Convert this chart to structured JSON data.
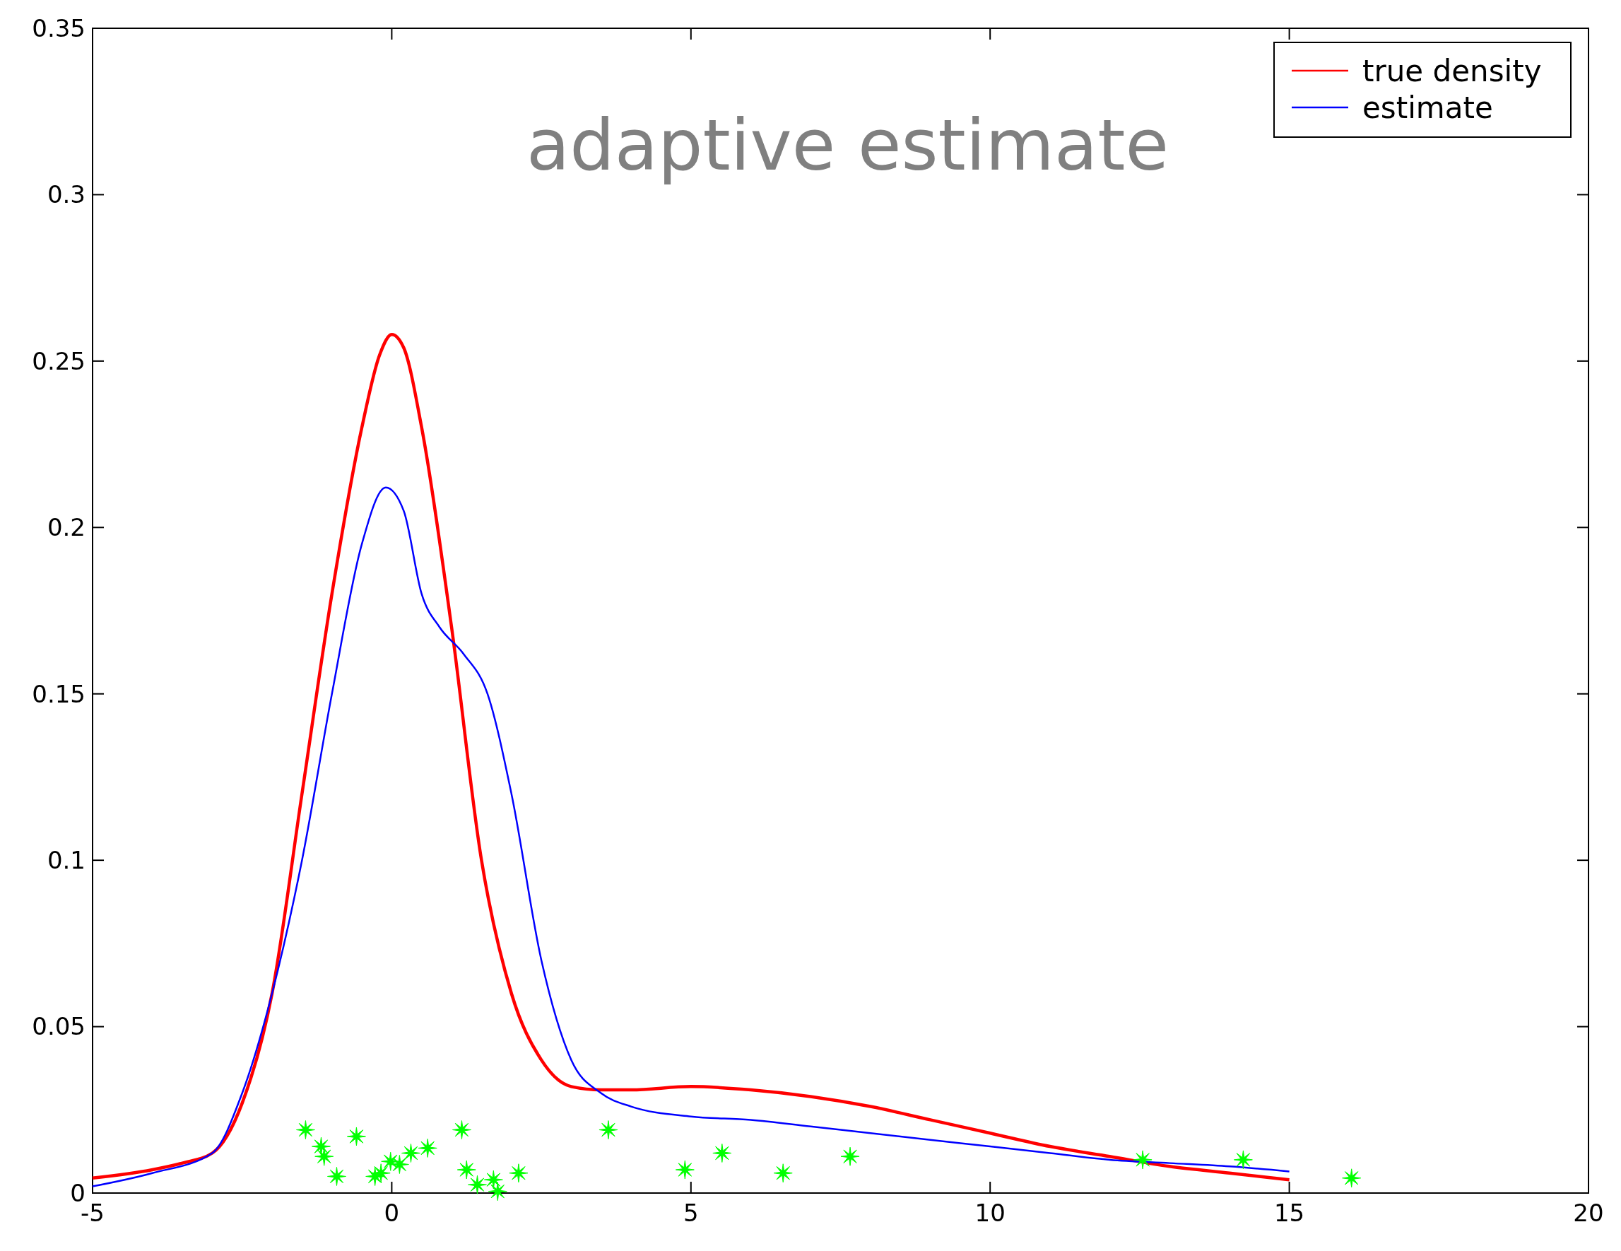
{
  "chart_data": {
    "type": "line",
    "title": "adaptive estimate",
    "xlim": [
      -5,
      20
    ],
    "ylim": [
      0,
      0.35
    ],
    "xticks": [
      -5,
      0,
      5,
      10,
      15,
      20
    ],
    "yticks": [
      0,
      0.05,
      0.1,
      0.15,
      0.2,
      0.25,
      0.3,
      0.35
    ],
    "legend": "top right",
    "grid": false,
    "series": [
      {
        "name": "true density",
        "color": "#ff0000",
        "x": [
          -5,
          -4,
          -3.5,
          -3,
          -2.5,
          -2,
          -1.5,
          -1,
          -0.5,
          -0.2,
          0,
          0.2,
          0.5,
          1,
          1.5,
          2,
          2.5,
          3,
          3.5,
          4,
          5,
          6,
          7,
          8,
          9,
          10,
          11,
          12,
          13,
          14,
          15
        ],
        "values": [
          0.0045,
          0.007,
          0.009,
          0.012,
          0.027,
          0.06,
          0.12,
          0.18,
          0.23,
          0.252,
          0.258,
          0.254,
          0.23,
          0.17,
          0.1,
          0.06,
          0.04,
          0.032,
          0.031,
          0.031,
          0.032,
          0.031,
          0.029,
          0.026,
          0.022,
          0.018,
          0.014,
          0.011,
          0.008,
          0.006,
          0.004
        ]
      },
      {
        "name": "estimate",
        "color": "#0000ff",
        "x": [
          -5,
          -4,
          -3,
          -2.5,
          -2,
          -1.5,
          -1,
          -0.5,
          -0.1,
          0.2,
          0.5,
          0.8,
          1.2,
          1.6,
          2,
          2.5,
          3,
          3.5,
          4,
          5,
          6,
          7,
          8,
          9,
          10,
          11,
          12,
          13,
          14,
          15
        ],
        "values": [
          0.002,
          0.006,
          0.012,
          0.03,
          0.06,
          0.1,
          0.15,
          0.195,
          0.212,
          0.205,
          0.18,
          0.17,
          0.162,
          0.15,
          0.12,
          0.07,
          0.04,
          0.03,
          0.026,
          0.023,
          0.022,
          0.02,
          0.018,
          0.016,
          0.014,
          0.012,
          0.01,
          0.009,
          0.008,
          0.0065
        ]
      },
      {
        "type": "scatter",
        "marker": "star",
        "color": "#00ff00",
        "x": [
          -1.44,
          -1.18,
          -1.13,
          -0.92,
          -0.59,
          -0.28,
          -0.18,
          -0.02,
          0.13,
          0.32,
          0.6,
          1.17,
          1.25,
          1.43,
          1.7,
          1.77,
          2.12,
          3.62,
          4.9,
          5.52,
          6.54,
          7.66,
          12.55,
          14.23,
          16.04
        ],
        "values": [
          0.019,
          0.014,
          0.011,
          0.005,
          0.017,
          0.005,
          0.006,
          0.0095,
          0.0086,
          0.012,
          0.0135,
          0.019,
          0.007,
          0.0025,
          0.004,
          0.0005,
          0.006,
          0.019,
          0.007,
          0.012,
          0.006,
          0.011,
          0.01,
          0.01,
          0.0045
        ]
      }
    ]
  }
}
